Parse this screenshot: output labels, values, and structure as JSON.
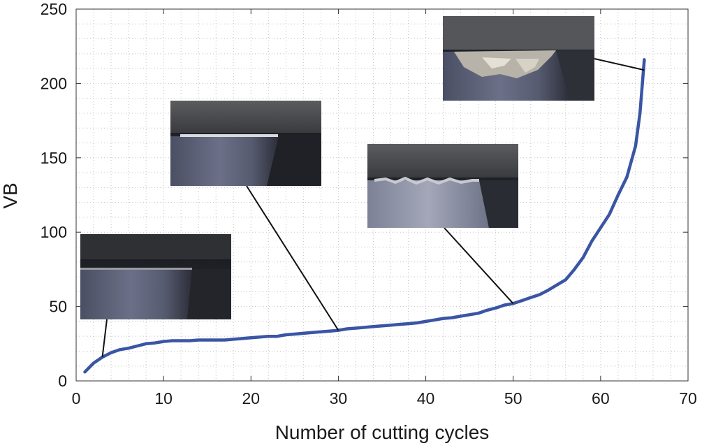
{
  "chart_data": {
    "type": "line",
    "xlabel": "Number of cutting cycles",
    "ylabel": "VB",
    "xlim": [
      0,
      70
    ],
    "ylim": [
      0,
      250
    ],
    "xticks": [
      0,
      10,
      20,
      30,
      40,
      50,
      60,
      70
    ],
    "yticks": [
      0,
      50,
      100,
      150,
      200,
      250
    ],
    "grid": "dotted-minor",
    "series": [
      {
        "color": "#3a55a4",
        "x": [
          1,
          2,
          3,
          4,
          5,
          6,
          7,
          8,
          9,
          10,
          11,
          12,
          13,
          14,
          15,
          16,
          17,
          18,
          19,
          20,
          21,
          22,
          23,
          24,
          25,
          26,
          27,
          28,
          29,
          30,
          31,
          32,
          33,
          34,
          35,
          36,
          37,
          38,
          39,
          40,
          41,
          42,
          43,
          44,
          45,
          46,
          47,
          48,
          49,
          50,
          51,
          52,
          53,
          54,
          55,
          56,
          57,
          58,
          59,
          60,
          61,
          62,
          63,
          64,
          64.5,
          65
        ],
        "y": [
          6,
          12,
          16,
          19,
          21,
          22,
          23.5,
          25,
          25.5,
          26.5,
          27,
          27,
          27,
          27.5,
          27.5,
          27.5,
          27.5,
          28,
          28.5,
          29,
          29.5,
          30,
          30,
          31,
          31.5,
          32,
          32.5,
          33,
          33.5,
          34,
          35,
          35.5,
          36,
          36.5,
          37,
          37.5,
          38,
          38.5,
          39,
          40,
          41,
          42,
          42.5,
          43.5,
          44.5,
          45.5,
          47.5,
          49,
          51,
          52,
          54,
          56,
          58,
          61,
          64.5,
          68,
          75,
          83,
          94,
          103,
          112,
          125,
          137,
          158,
          180,
          216
        ]
      }
    ],
    "insets": [
      {
        "image": "tool-wear-micrograph-initial",
        "points_to": [
          3,
          16
        ]
      },
      {
        "image": "tool-wear-micrograph-steady",
        "points_to": [
          30,
          34
        ]
      },
      {
        "image": "tool-wear-micrograph-chipped",
        "points_to": [
          50,
          52
        ]
      },
      {
        "image": "tool-wear-micrograph-failure",
        "points_to": [
          65,
          209
        ]
      }
    ]
  }
}
